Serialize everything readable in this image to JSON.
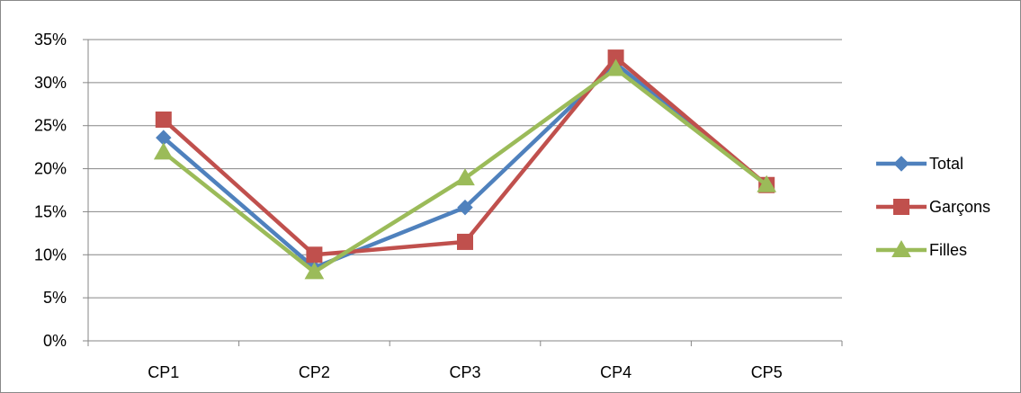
{
  "chart_data": {
    "type": "line",
    "title": "",
    "xlabel": "",
    "ylabel": "",
    "categories": [
      "CP1",
      "CP2",
      "CP3",
      "CP4",
      "CP5"
    ],
    "ylim": [
      0,
      0.35
    ],
    "y_ticks": [
      "0%",
      "5%",
      "10%",
      "15%",
      "20%",
      "25%",
      "30%",
      "35%"
    ],
    "grid": true,
    "legend_position": "right",
    "series": [
      {
        "name": "Total",
        "values": [
          0.236,
          0.085,
          0.155,
          0.322,
          0.181
        ],
        "color": "#4F81BD",
        "marker": "diamond"
      },
      {
        "name": "Garçons",
        "values": [
          0.257,
          0.1,
          0.115,
          0.329,
          0.181
        ],
        "color": "#C0504D",
        "marker": "square"
      },
      {
        "name": "Filles",
        "values": [
          0.219,
          0.08,
          0.189,
          0.316,
          0.181
        ],
        "color": "#9BBB59",
        "marker": "triangle"
      }
    ]
  }
}
